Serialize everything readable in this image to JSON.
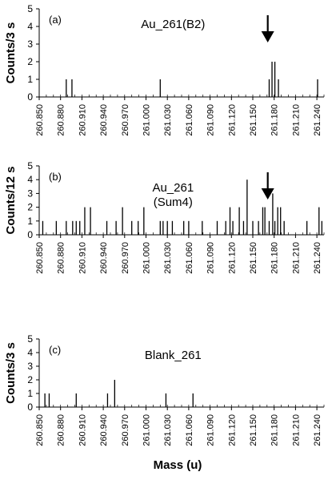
{
  "chart_data": [
    {
      "type": "bar",
      "panel_label": "(a)",
      "title": "Au_261(B2)",
      "subtitle": "",
      "ylabel": "Counts/3 s",
      "xlabel": "",
      "xlim": [
        260.85,
        261.25
      ],
      "ylim": [
        0,
        5
      ],
      "yticks": [
        "0",
        "1",
        "2",
        "3",
        "4",
        "5"
      ],
      "xticks": [
        "260.850",
        "260.880",
        "260.910",
        "260.940",
        "260.970",
        "261.000",
        "261.030",
        "261.060",
        "261.090",
        "261.120",
        "261.150",
        "261.180",
        "261.210",
        "261.240"
      ],
      "arrow_x": 261.171,
      "x": [
        260.888,
        260.896,
        261.02,
        261.173,
        261.177,
        261.181,
        261.186,
        261.241
      ],
      "values": [
        1,
        1,
        1,
        1,
        2,
        2,
        1,
        1
      ]
    },
    {
      "type": "bar",
      "panel_label": "(b)",
      "title": "Au_261",
      "subtitle": "(Sum4)",
      "ylabel": "Counts/12 s",
      "xlabel": "",
      "xlim": [
        260.85,
        261.25
      ],
      "ylim": [
        0,
        5
      ],
      "yticks": [
        "0",
        "1",
        "2",
        "3",
        "4",
        "5"
      ],
      "xticks": [
        "260.850",
        "260.880",
        "260.910",
        "260.940",
        "260.970",
        "261.000",
        "261.030",
        "261.060",
        "261.090",
        "261.120",
        "261.150",
        "261.180",
        "261.210",
        "261.240"
      ],
      "arrow_x": 261.171,
      "x": [
        260.855,
        260.874,
        260.888,
        260.897,
        260.902,
        260.907,
        260.914,
        260.922,
        260.945,
        260.958,
        260.967,
        260.98,
        260.989,
        260.997,
        261.02,
        261.024,
        261.03,
        261.037,
        261.053,
        261.06,
        261.079,
        261.1,
        261.112,
        261.118,
        261.122,
        261.131,
        261.137,
        261.142,
        261.15,
        261.158,
        261.164,
        261.167,
        261.173,
        261.178,
        261.181,
        261.185,
        261.189,
        261.194,
        261.226,
        261.243,
        261.247
      ],
      "values": [
        1,
        1,
        1,
        1,
        1,
        1,
        2,
        2,
        1,
        1,
        2,
        1,
        1,
        2,
        1,
        1,
        1,
        1,
        1,
        1,
        1,
        1,
        1,
        2,
        1,
        2,
        1,
        4,
        1,
        1,
        2,
        2,
        1,
        3,
        1,
        2,
        2,
        1,
        1,
        2,
        1
      ]
    },
    {
      "type": "bar",
      "panel_label": "(c)",
      "title": "Blank_261",
      "subtitle": "",
      "ylabel": "Counts/3 s",
      "xlabel": "Mass (u)",
      "xlim": [
        260.85,
        261.25
      ],
      "ylim": [
        0,
        5
      ],
      "yticks": [
        "0",
        "1",
        "2",
        "3",
        "4",
        "5"
      ],
      "xticks": [
        "260.850",
        "260.880",
        "260.910",
        "260.940",
        "260.970",
        "261.000",
        "261.030",
        "261.060",
        "261.090",
        "261.120",
        "261.150",
        "261.180",
        "261.210",
        "261.240"
      ],
      "arrow_x": null,
      "x": [
        260.858,
        260.864,
        260.902,
        260.946,
        260.956,
        261.028,
        261.066
      ],
      "values": [
        1,
        1,
        1,
        1,
        2,
        1,
        1
      ]
    }
  ]
}
